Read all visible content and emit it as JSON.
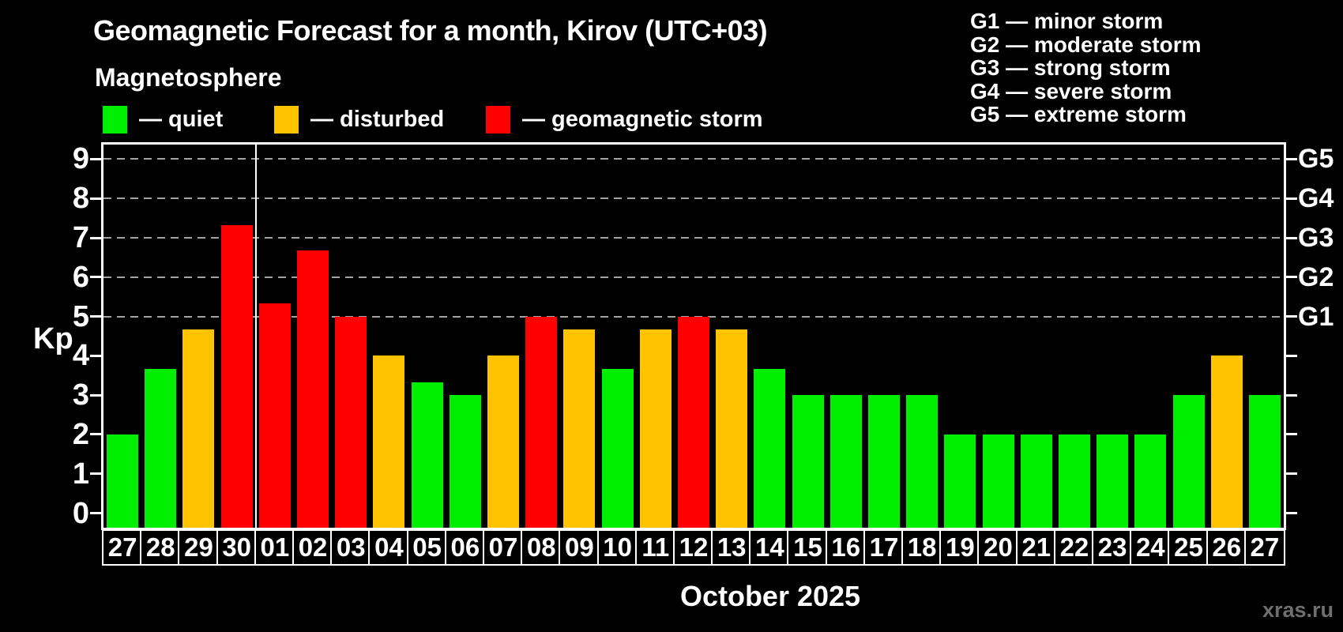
{
  "title": "Geomagnetic Forecast for a month, Kirov (UTC+03)",
  "subtitle": "Magnetosphere",
  "legend": {
    "items": [
      {
        "key": "quiet",
        "label": "— quiet",
        "color": "#00ee00"
      },
      {
        "key": "disturbed",
        "label": "— disturbed",
        "color": "#ffc300"
      },
      {
        "key": "storm",
        "label": "— geomagnetic storm",
        "color": "#ff0000"
      }
    ]
  },
  "gscale_legend": [
    "G1 — minor storm",
    "G2 — moderate storm",
    "G3 — strong storm",
    "G4 — severe storm",
    "G5 — extreme storm"
  ],
  "watermark": "xras.ru",
  "chart_data": {
    "type": "bar",
    "title": "Geomagnetic Forecast for a month, Kirov (UTC+03)",
    "xlabel": "October 2025",
    "ylabel": "Kp",
    "ylim": [
      0,
      9
    ],
    "yticks": [
      0,
      1,
      2,
      3,
      4,
      5,
      6,
      7,
      8,
      9
    ],
    "grid": "dashed horizontal lines at G-storm levels only",
    "gridlines_at_kp": [
      5,
      6,
      7,
      8,
      9
    ],
    "right_axis": [
      {
        "label": "G1",
        "kp": 5
      },
      {
        "label": "G2",
        "kp": 6
      },
      {
        "label": "G3",
        "kp": 7
      },
      {
        "label": "G4",
        "kp": 8
      },
      {
        "label": "G5",
        "kp": 9
      }
    ],
    "month_separator_between": [
      "30",
      "01"
    ],
    "categories": [
      "27",
      "28",
      "29",
      "30",
      "01",
      "02",
      "03",
      "04",
      "05",
      "06",
      "07",
      "08",
      "09",
      "10",
      "11",
      "12",
      "13",
      "14",
      "15",
      "16",
      "17",
      "18",
      "19",
      "20",
      "21",
      "22",
      "23",
      "24",
      "25",
      "26",
      "27"
    ],
    "values": [
      2,
      3.67,
      4.67,
      7.33,
      5.33,
      6.67,
      5,
      4,
      3.33,
      3,
      4,
      5,
      4.67,
      3.67,
      4.67,
      5,
      4.67,
      3.67,
      3,
      3,
      3,
      3,
      2,
      2,
      2,
      2,
      2,
      2,
      3,
      4,
      3
    ],
    "statuses": [
      "quiet",
      "quiet",
      "disturbed",
      "storm",
      "storm",
      "storm",
      "storm",
      "disturbed",
      "quiet",
      "quiet",
      "disturbed",
      "storm",
      "disturbed",
      "quiet",
      "disturbed",
      "storm",
      "disturbed",
      "quiet",
      "quiet",
      "quiet",
      "quiet",
      "quiet",
      "quiet",
      "quiet",
      "quiet",
      "quiet",
      "quiet",
      "quiet",
      "quiet",
      "disturbed",
      "quiet"
    ],
    "status_colors": {
      "quiet": "#00ee00",
      "disturbed": "#ffc300",
      "storm": "#ff0000"
    }
  }
}
